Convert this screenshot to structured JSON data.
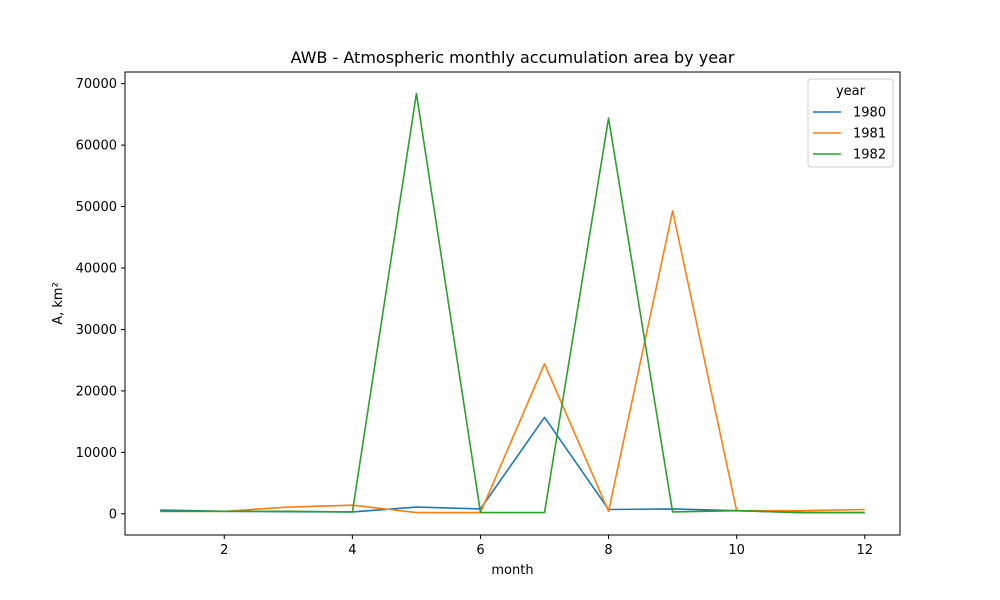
{
  "chart_data": {
    "type": "line",
    "title": "AWB - Atmospheric monthly accumulation area by year",
    "xlabel": "month",
    "ylabel": "A, km²",
    "x": [
      1,
      2,
      3,
      4,
      5,
      6,
      7,
      8,
      9,
      10,
      11,
      12
    ],
    "xlim": [
      0.45,
      12.55
    ],
    "ylim": [
      -3450,
      71900
    ],
    "xticks": [
      2,
      4,
      6,
      8,
      10,
      12
    ],
    "yticks": [
      0,
      10000,
      20000,
      30000,
      40000,
      50000,
      60000,
      70000
    ],
    "grid": false,
    "legend": {
      "title": "year",
      "placement": "top-right"
    },
    "series": [
      {
        "name": "1980",
        "color": "#1f77b4",
        "values": [
          600,
          400,
          350,
          300,
          1100,
          800,
          15700,
          700,
          800,
          500,
          200,
          200
        ]
      },
      {
        "name": "1981",
        "color": "#ff7f0e",
        "values": [
          400,
          400,
          1100,
          1400,
          200,
          200,
          24400,
          400,
          49300,
          500,
          500,
          700
        ]
      },
      {
        "name": "1982",
        "color": "#2ca02c",
        "values": [
          400,
          400,
          400,
          300,
          68400,
          200,
          200,
          64400,
          300,
          500,
          200,
          200
        ]
      }
    ]
  }
}
